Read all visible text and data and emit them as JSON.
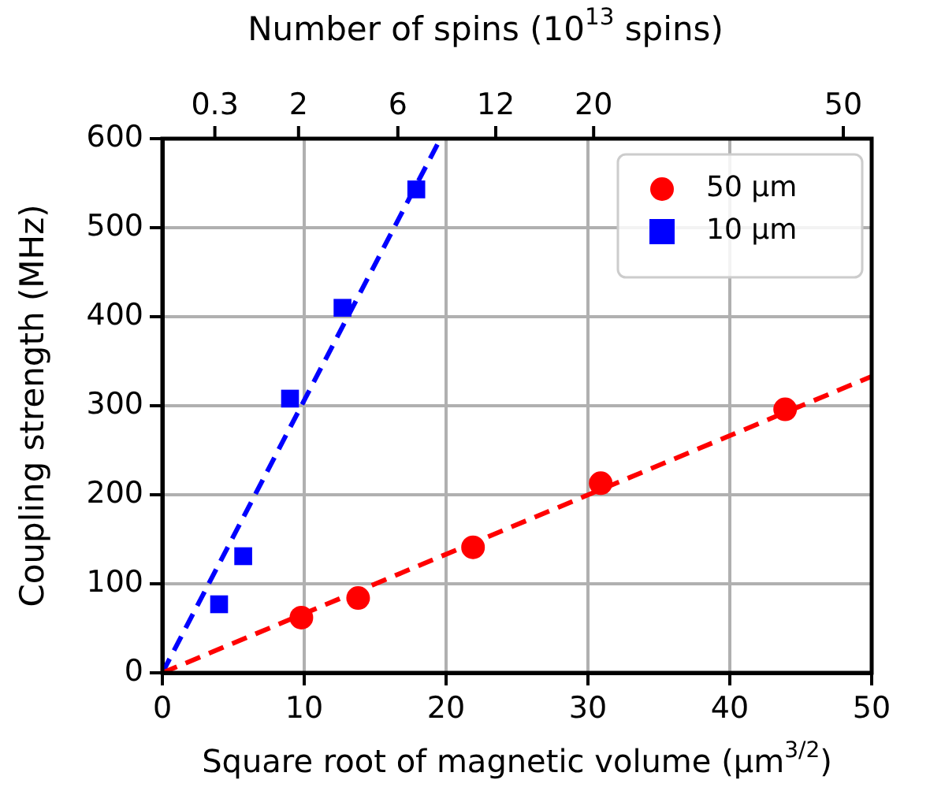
{
  "chart_data": {
    "type": "scatter",
    "xlabel": "Square root of magnetic volume (μm$^{3/2}$)",
    "ylabel": "Coupling strength (MHz)",
    "x2label": "Number of spins (10$^{13}$ spins)",
    "xlim": [
      0,
      50
    ],
    "xticks": [
      0,
      10,
      20,
      30,
      40,
      50
    ],
    "ylim": [
      0,
      600
    ],
    "yticks": [
      0,
      100,
      200,
      300,
      400,
      500,
      600
    ],
    "annotations": [
      "0.3",
      "2",
      "6",
      "12",
      "20",
      "50"
    ],
    "grid": true,
    "legend": "top right",
    "series": [
      {
        "name": "50 μm",
        "marker": "circle",
        "color": "#ff0000",
        "x": [
          9.8,
          13.8,
          21.9,
          30.9,
          43.9
        ],
        "values": [
          62,
          84,
          141,
          213,
          296
        ]
      },
      {
        "name": "10 μm",
        "marker": "square",
        "color": "#0000ff",
        "x": [
          4.0,
          5.7,
          9.0,
          12.7,
          17.9
        ],
        "values": [
          77,
          131,
          308,
          410,
          543
        ]
      },
      {
        "type": "line",
        "line_style": "dashed",
        "marker": "none",
        "color": "#ff0000",
        "x": [
          0,
          50
        ],
        "values": [
          0,
          333
        ]
      },
      {
        "type": "line",
        "line_style": "dashed",
        "marker": "none",
        "color": "#0000ff",
        "x": [
          0,
          19.6
        ],
        "values": [
          0,
          600
        ]
      }
    ]
  }
}
